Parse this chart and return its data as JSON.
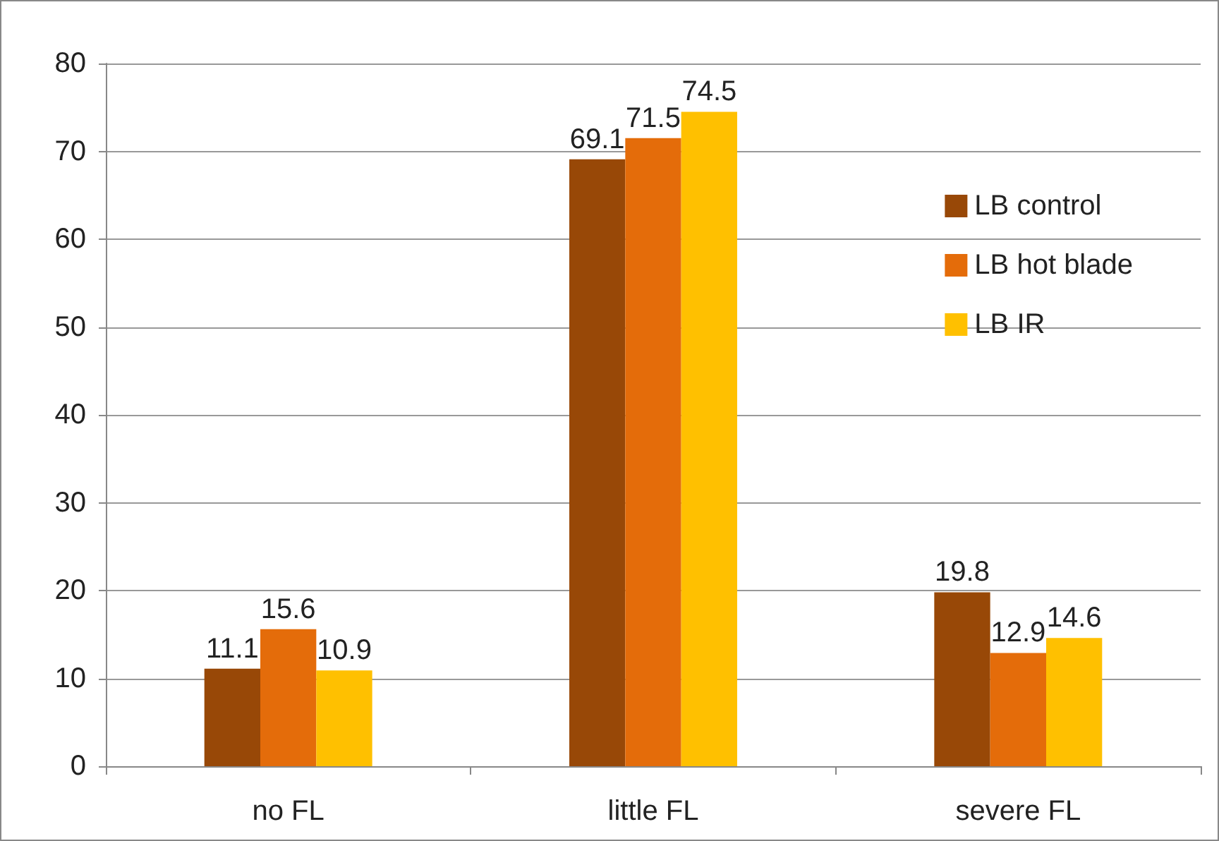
{
  "chart_data": {
    "type": "bar",
    "categories": [
      "no FL",
      "little FL",
      "severe FL"
    ],
    "series": [
      {
        "name": "LB control",
        "color": "#984807",
        "values": [
          11.1,
          69.1,
          19.8
        ]
      },
      {
        "name": "LB hot blade",
        "color": "#e46c0a",
        "values": [
          15.6,
          71.5,
          12.9
        ]
      },
      {
        "name": "LB IR",
        "color": "#ffc000",
        "values": [
          10.9,
          74.5,
          14.6
        ]
      }
    ],
    "ylim": [
      0,
      80
    ],
    "yticks": [
      0,
      10,
      20,
      30,
      40,
      50,
      60,
      70,
      80
    ],
    "grid": "y",
    "legend": "right",
    "data_labels": true
  }
}
